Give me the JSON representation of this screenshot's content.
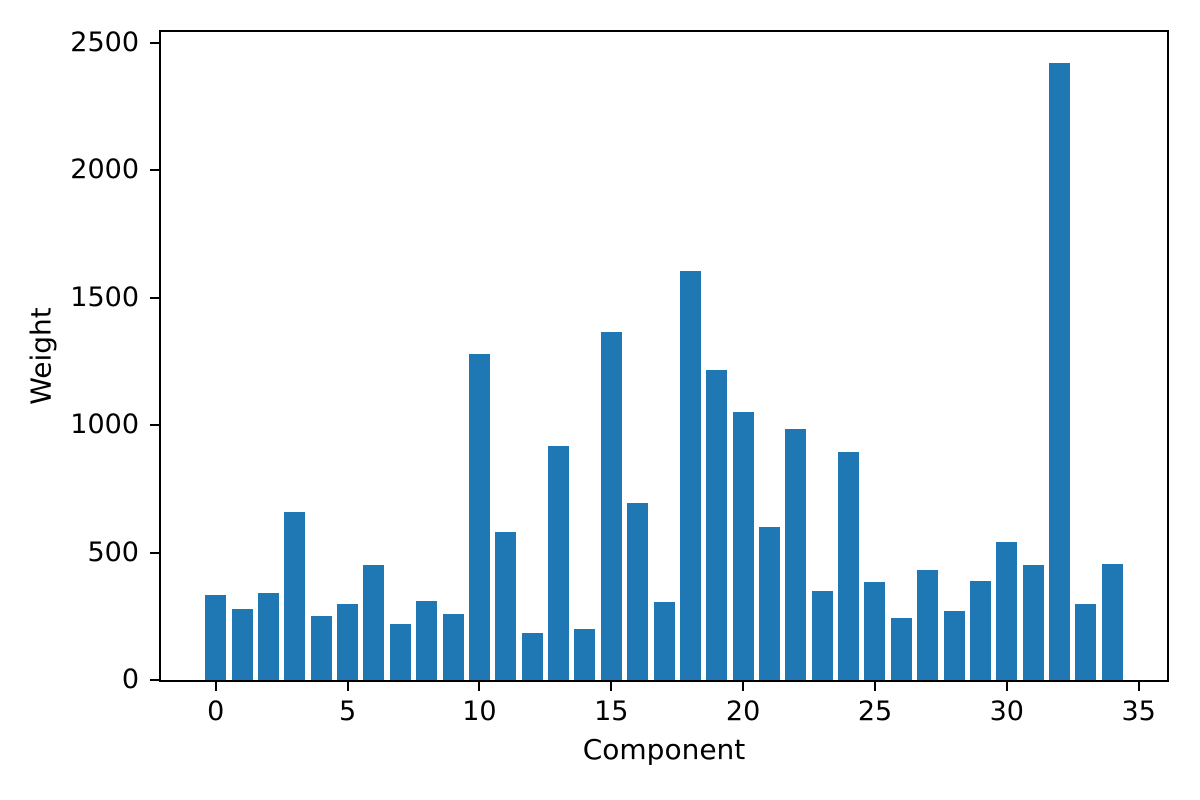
{
  "chart_data": {
    "type": "bar",
    "title": "",
    "xlabel": "Component",
    "ylabel": "Weight",
    "categories": [
      0,
      1,
      2,
      3,
      4,
      5,
      6,
      7,
      8,
      9,
      10,
      11,
      12,
      13,
      14,
      15,
      16,
      17,
      18,
      19,
      20,
      21,
      22,
      23,
      24,
      25,
      26,
      27,
      28,
      29,
      30,
      31,
      32,
      33,
      34
    ],
    "values": [
      335,
      280,
      340,
      660,
      250,
      300,
      450,
      220,
      310,
      260,
      1280,
      580,
      185,
      920,
      200,
      1365,
      695,
      305,
      1605,
      1215,
      1050,
      600,
      985,
      350,
      895,
      385,
      245,
      430,
      270,
      390,
      540,
      450,
      2420,
      300,
      455
    ],
    "bar_color": "#1f77b4",
    "bar_width": 0.8,
    "xticks": [
      0,
      5,
      10,
      15,
      20,
      25,
      30,
      35
    ],
    "yticks": [
      0,
      500,
      1000,
      1500,
      2000,
      2500
    ],
    "xlim": [
      -2.15,
      36.15
    ],
    "ylim": [
      0,
      2550
    ],
    "grid": false,
    "legend_position": "none",
    "axis_color": "#000000",
    "background_color": "#ffffff"
  }
}
